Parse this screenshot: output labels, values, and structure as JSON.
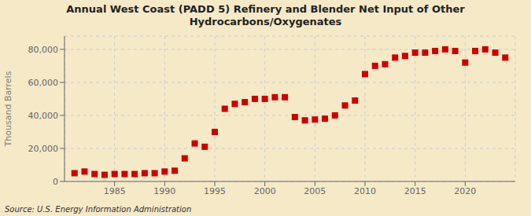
{
  "chart_data": {
    "type": "scatter",
    "title": "Annual West Coast (PADD 5) Refinery and Blender Net Input of Other\nHydrocarbons/Oxygenates",
    "ylabel": "Thousand Barrels",
    "annotations": [
      "Source: U.S. Energy Information Administration"
    ],
    "x": [
      1981,
      1982,
      1983,
      1984,
      1985,
      1986,
      1987,
      1988,
      1989,
      1990,
      1991,
      1992,
      1993,
      1994,
      1995,
      1996,
      1997,
      1998,
      1999,
      2000,
      2001,
      2002,
      2003,
      2004,
      2005,
      2006,
      2007,
      2008,
      2009,
      2010,
      2011,
      2012,
      2013,
      2014,
      2015,
      2016,
      2017,
      2018,
      2019,
      2020,
      2021,
      2022,
      2023,
      2024
    ],
    "values": [
      5000,
      6000,
      4500,
      4000,
      4500,
      4500,
      4500,
      5000,
      5000,
      6000,
      6500,
      14000,
      23000,
      21000,
      30000,
      44000,
      47000,
      48000,
      50000,
      50000,
      51000,
      51000,
      39000,
      37000,
      37500,
      38000,
      40000,
      46000,
      49000,
      65000,
      70000,
      71000,
      75000,
      76000,
      78000,
      78000,
      79000,
      80000,
      79000,
      72000,
      79000,
      80000,
      78000,
      75000
    ],
    "color": "#cc0000",
    "marker": "square",
    "xlim": [
      1980,
      2025
    ],
    "xticks": [
      1985,
      1990,
      1995,
      2000,
      2005,
      2010,
      2015,
      2020
    ],
    "ylim": [
      0,
      88000
    ],
    "yticks": [
      0,
      {
        "value": 20000,
        "label": "20,000"
      },
      {
        "value": 40000,
        "label": "40,000"
      },
      {
        "value": 60000,
        "label": "60,000"
      },
      {
        "value": 80000,
        "label": "80,000"
      }
    ],
    "grid": true
  }
}
